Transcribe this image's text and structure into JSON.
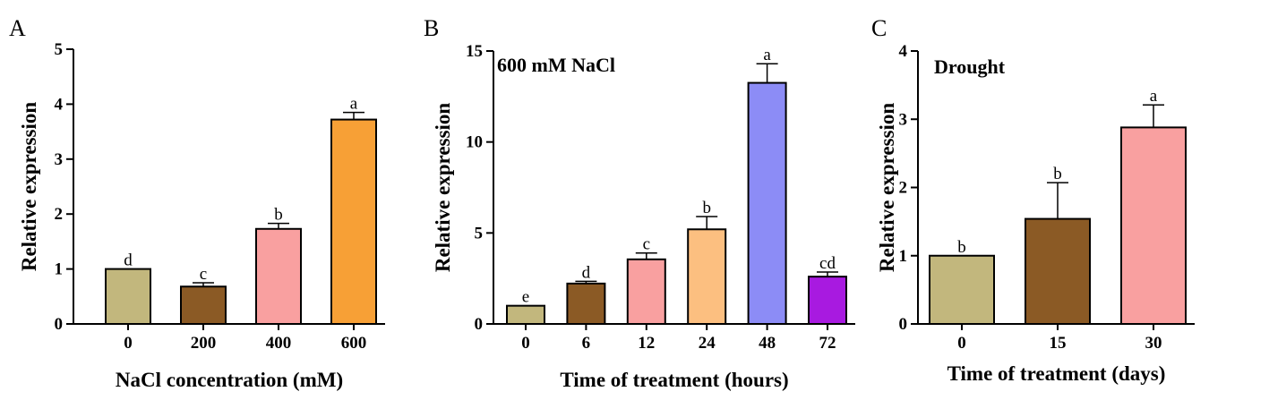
{
  "chart_data": [
    {
      "type": "bar",
      "panel": "A",
      "annotation": "",
      "categories": [
        "0",
        "200",
        "400",
        "600"
      ],
      "values": [
        1.0,
        0.68,
        1.73,
        3.72
      ],
      "errors": [
        0.0,
        0.07,
        0.1,
        0.13
      ],
      "significance": [
        "d",
        "c",
        "b",
        "a"
      ],
      "colors": [
        "#c2b77d",
        "#8b5a25",
        "#f9a0a0",
        "#f7a036"
      ],
      "xlabel": "NaCl concentration (mM)",
      "ylabel": "Relative expression",
      "ylim": [
        0,
        5
      ],
      "yticks": [
        0,
        1,
        2,
        3,
        4,
        5
      ],
      "grid": false
    },
    {
      "type": "bar",
      "panel": "B",
      "annotation": "600 mM NaCl",
      "categories": [
        "0",
        "6",
        "12",
        "24",
        "48",
        "72"
      ],
      "values": [
        1.0,
        2.22,
        3.55,
        5.2,
        13.25,
        2.6
      ],
      "errors": [
        0.0,
        0.12,
        0.35,
        0.7,
        1.05,
        0.25
      ],
      "significance": [
        "e",
        "d",
        "c",
        "b",
        "a",
        "cd"
      ],
      "colors": [
        "#c2b77d",
        "#8b5a25",
        "#f9a0a0",
        "#fcbf80",
        "#8c8cf6",
        "#a81ae0"
      ],
      "xlabel": "Time of treatment (hours)",
      "ylabel": "Relative expression",
      "ylim": [
        0,
        15
      ],
      "yticks": [
        0,
        5,
        10,
        15
      ],
      "grid": false
    },
    {
      "type": "bar",
      "panel": "C",
      "annotation": "Drought",
      "categories": [
        "0",
        "15",
        "30"
      ],
      "values": [
        1.0,
        1.54,
        2.88
      ],
      "errors": [
        0.0,
        0.53,
        0.33
      ],
      "significance": [
        "b",
        "b",
        "a"
      ],
      "colors": [
        "#c2b77d",
        "#8b5a25",
        "#f9a0a0"
      ],
      "xlabel": "Time of treatment (days)",
      "ylabel": "Relative expression",
      "ylim": [
        0,
        4
      ],
      "yticks": [
        0,
        1,
        2,
        3,
        4
      ],
      "grid": false
    }
  ]
}
